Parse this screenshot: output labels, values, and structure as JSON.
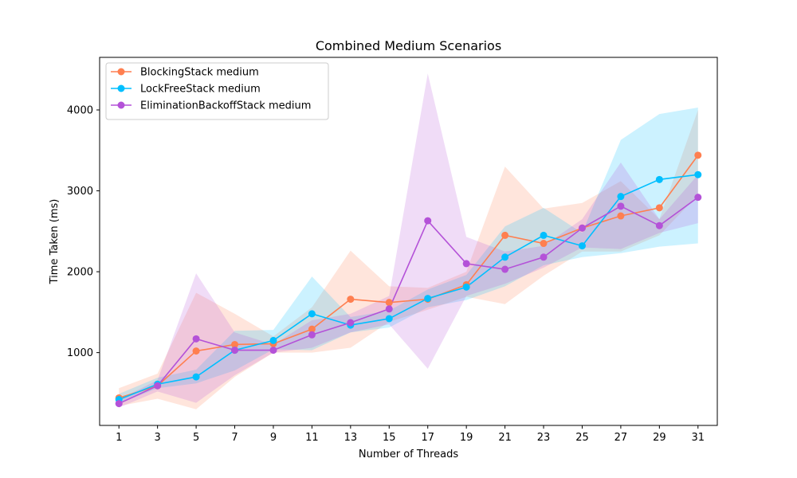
{
  "chart_data": {
    "type": "line",
    "title": "Combined Medium Scenarios",
    "xlabel": "Number of Threads",
    "ylabel": "Time Taken (ms)",
    "x": [
      1,
      3,
      5,
      7,
      9,
      11,
      13,
      15,
      17,
      19,
      21,
      23,
      25,
      27,
      29,
      31
    ],
    "xlim": [
      0,
      32
    ],
    "ylim": [
      100,
      4650
    ],
    "yticks": [
      1000,
      2000,
      3000,
      4000
    ],
    "grid": false,
    "legend_position": "top-left",
    "series": [
      {
        "name": "BlockingStack medium",
        "color": "#ff7f50",
        "values": [
          440,
          590,
          1020,
          1100,
          1110,
          1290,
          1660,
          1620,
          1660,
          1840,
          2450,
          2350,
          2540,
          2690,
          2790,
          3440
        ],
        "lower": [
          340,
          430,
          300,
          700,
          1000,
          1000,
          1060,
          1380,
          1530,
          1690,
          1600,
          1950,
          2250,
          2250,
          2450,
          2950
        ],
        "upper": [
          560,
          740,
          1740,
          1480,
          1200,
          1560,
          2260,
          1820,
          1800,
          2000,
          3300,
          2780,
          2850,
          3120,
          2650,
          4000
        ]
      },
      {
        "name": "LockFreeStack medium",
        "color": "#00bfff",
        "values": [
          420,
          610,
          700,
          1030,
          1150,
          1480,
          1340,
          1420,
          1670,
          1810,
          2180,
          2450,
          2320,
          2930,
          3140,
          3200
        ],
        "lower": [
          370,
          560,
          620,
          780,
          1040,
          1030,
          1250,
          1310,
          1560,
          1650,
          1820,
          2080,
          2180,
          2230,
          2310,
          2350
        ],
        "upper": [
          490,
          690,
          790,
          1270,
          1280,
          1940,
          1440,
          1520,
          1780,
          1960,
          2560,
          2790,
          2480,
          3630,
          3950,
          4030
        ]
      },
      {
        "name": "EliminationBackoffStack medium",
        "color": "#b452d8",
        "values": [
          370,
          590,
          1170,
          1030,
          1030,
          1220,
          1370,
          1540,
          2630,
          2100,
          2030,
          2180,
          2540,
          2810,
          2570,
          2920
        ],
        "lower": [
          320,
          520,
          380,
          720,
          1000,
          1060,
          1250,
          1350,
          800,
          1700,
          1850,
          2050,
          2300,
          2280,
          2480,
          2600
        ],
        "upper": [
          420,
          660,
          1980,
          1250,
          1100,
          1400,
          1480,
          1700,
          4450,
          2430,
          2250,
          2320,
          2650,
          3350,
          2650,
          3200
        ]
      }
    ]
  }
}
